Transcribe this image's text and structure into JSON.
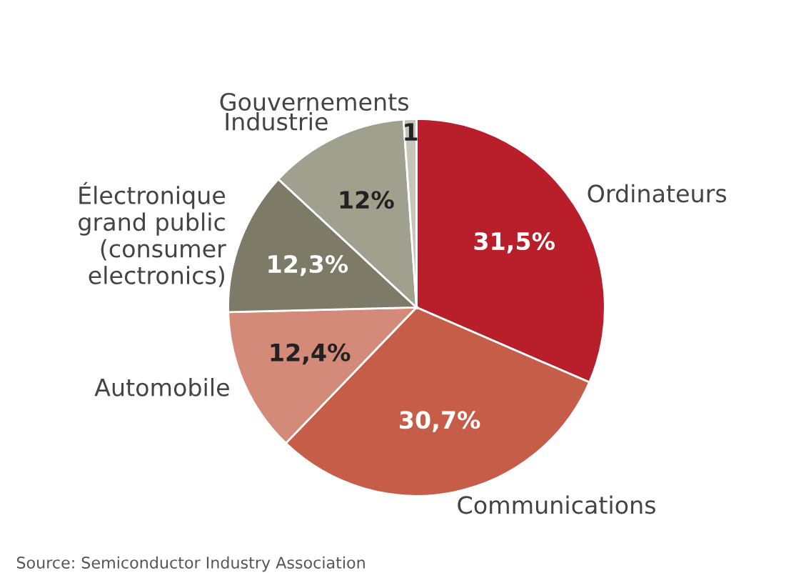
{
  "chart_data": {
    "type": "pie",
    "categories": [
      "Ordinateurs",
      "Communications",
      "Automobile",
      "Électronique\ngrand public\n(consumer\nelectronics)",
      "Industrie",
      "Gouvernements"
    ],
    "values": [
      31.5,
      30.7,
      12.4,
      12.3,
      12,
      1.1
    ],
    "value_labels": [
      "31,5%",
      "30,7%",
      "12,4%",
      "12,3%",
      "12%",
      "1"
    ],
    "colors": [
      "#b81f2a",
      "#c55d49",
      "#d48a78",
      "#7d7a68",
      "#a0a08e",
      "#c4c6b8"
    ],
    "annotations": [
      "Source: Semiconductor Industry Association"
    ],
    "legend": false
  }
}
